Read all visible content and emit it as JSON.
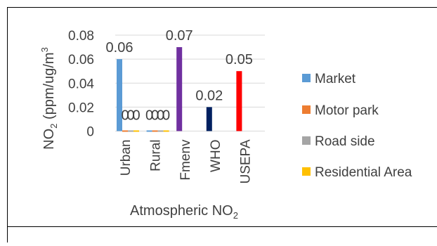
{
  "chart_data": {
    "type": "bar",
    "title": "",
    "xlabel": "Atmospheric NO",
    "xlabel_sub": "2",
    "ylabel_main": "NO",
    "ylabel_sub": "2",
    "ylabel_rest": " (ppm/ug/m",
    "ylabel_sup": "3",
    "categories": [
      "Urban",
      "Rural",
      "Fmenv",
      "WHO",
      "USEPA"
    ],
    "yticks": [
      "0",
      "0.02",
      "0.04",
      "0.06",
      "0.08"
    ],
    "ylim": [
      0,
      0.08
    ],
    "grid": true,
    "legend_position": "right",
    "series": [
      {
        "name": "Market",
        "color": "#5B9BD5",
        "values": [
          0.06,
          0,
          0.07,
          0.02,
          0.05
        ],
        "colors": [
          "#5B9BD5",
          "#5B9BD5",
          "#7030A0",
          "#002060",
          "#FF0000"
        ],
        "labels": [
          "0.06",
          "0",
          "0.07",
          "0.02",
          "0.05"
        ]
      },
      {
        "name": "Motor park",
        "color": "#ED7D31",
        "values": [
          0,
          0,
          null,
          null,
          null
        ],
        "labels": [
          "0",
          "0",
          "",
          "",
          ""
        ]
      },
      {
        "name": "Road side",
        "color": "#A5A5A5",
        "values": [
          0,
          0,
          null,
          null,
          null
        ],
        "labels": [
          "0",
          "0",
          "",
          "",
          ""
        ]
      },
      {
        "name": "Residential Area",
        "color": "#FFC000",
        "values": [
          0,
          0,
          null,
          null,
          null
        ],
        "labels": [
          "0",
          "0",
          "",
          "",
          ""
        ]
      }
    ]
  }
}
